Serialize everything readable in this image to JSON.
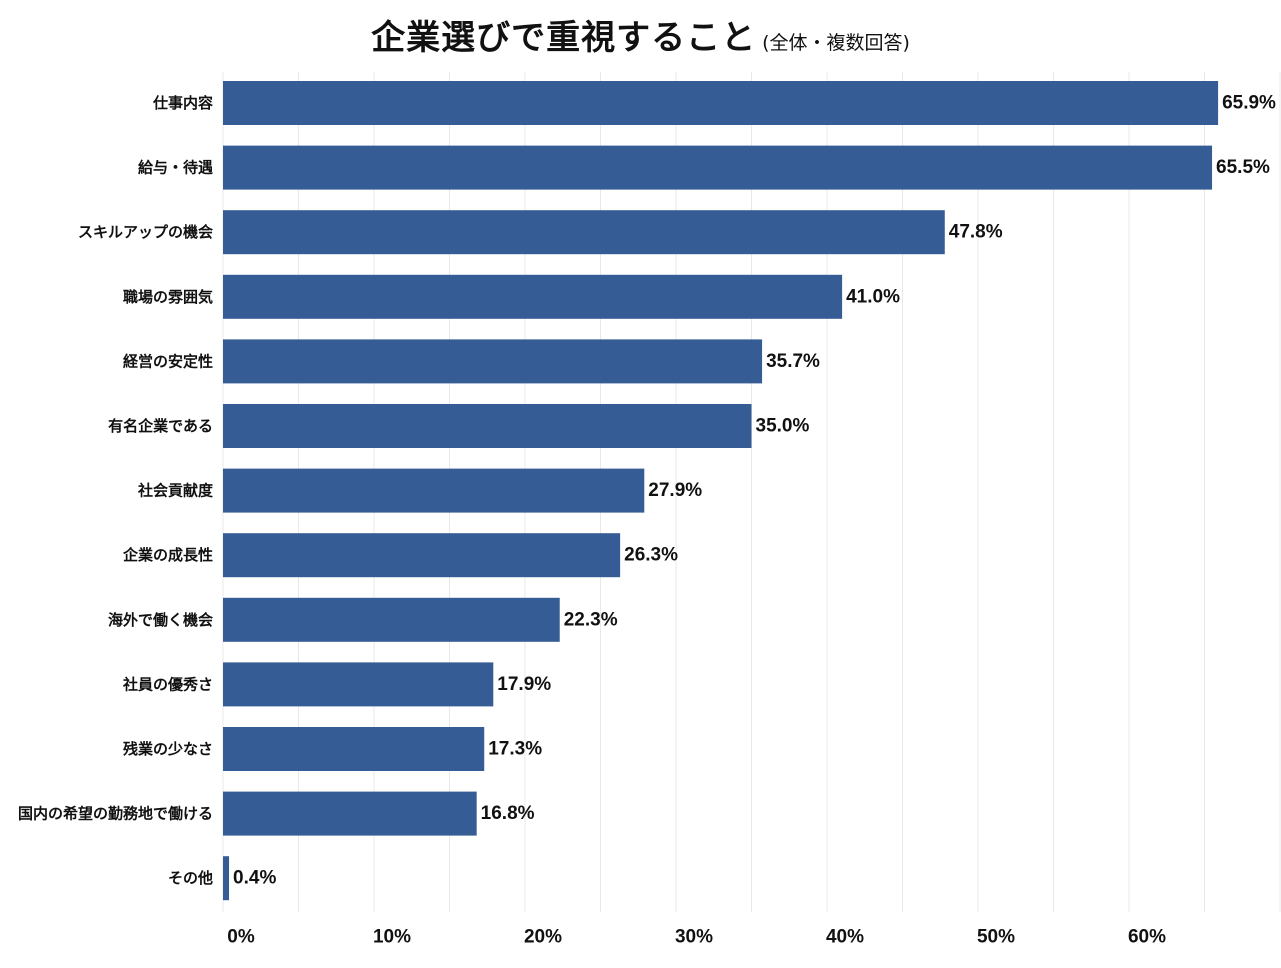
{
  "chart_data": {
    "type": "bar",
    "orientation": "horizontal",
    "title": "企業選びで重視すること",
    "subtitle": "(全体・複数回答)",
    "xlabel": "",
    "ylabel": "",
    "xlim": [
      0,
      70
    ],
    "x_ticks": [
      "0%",
      "10%",
      "20%",
      "30%",
      "40%",
      "50%",
      "60%"
    ],
    "grid": true,
    "bar_color": "#355c94",
    "categories": [
      "仕事内容",
      "給与・待遇",
      "スキルアップの機会",
      "職場の雰囲気",
      "経営の安定性",
      "有名企業である",
      "社会貢献度",
      "企業の成長性",
      "海外で働く機会",
      "社員の優秀さ",
      "残業の少なさ",
      "国内の希望の勤務地で働ける",
      "その他"
    ],
    "values": [
      65.9,
      65.5,
      47.8,
      41.0,
      35.7,
      35.0,
      27.9,
      26.3,
      22.3,
      17.9,
      17.3,
      16.8,
      0.4
    ],
    "value_labels": [
      "65.9%",
      "65.5%",
      "47.8%",
      "41.0%",
      "35.7%",
      "35.0%",
      "27.9%",
      "26.3%",
      "22.3%",
      "17.9%",
      "17.3%",
      "16.8%",
      "0.4%"
    ]
  }
}
